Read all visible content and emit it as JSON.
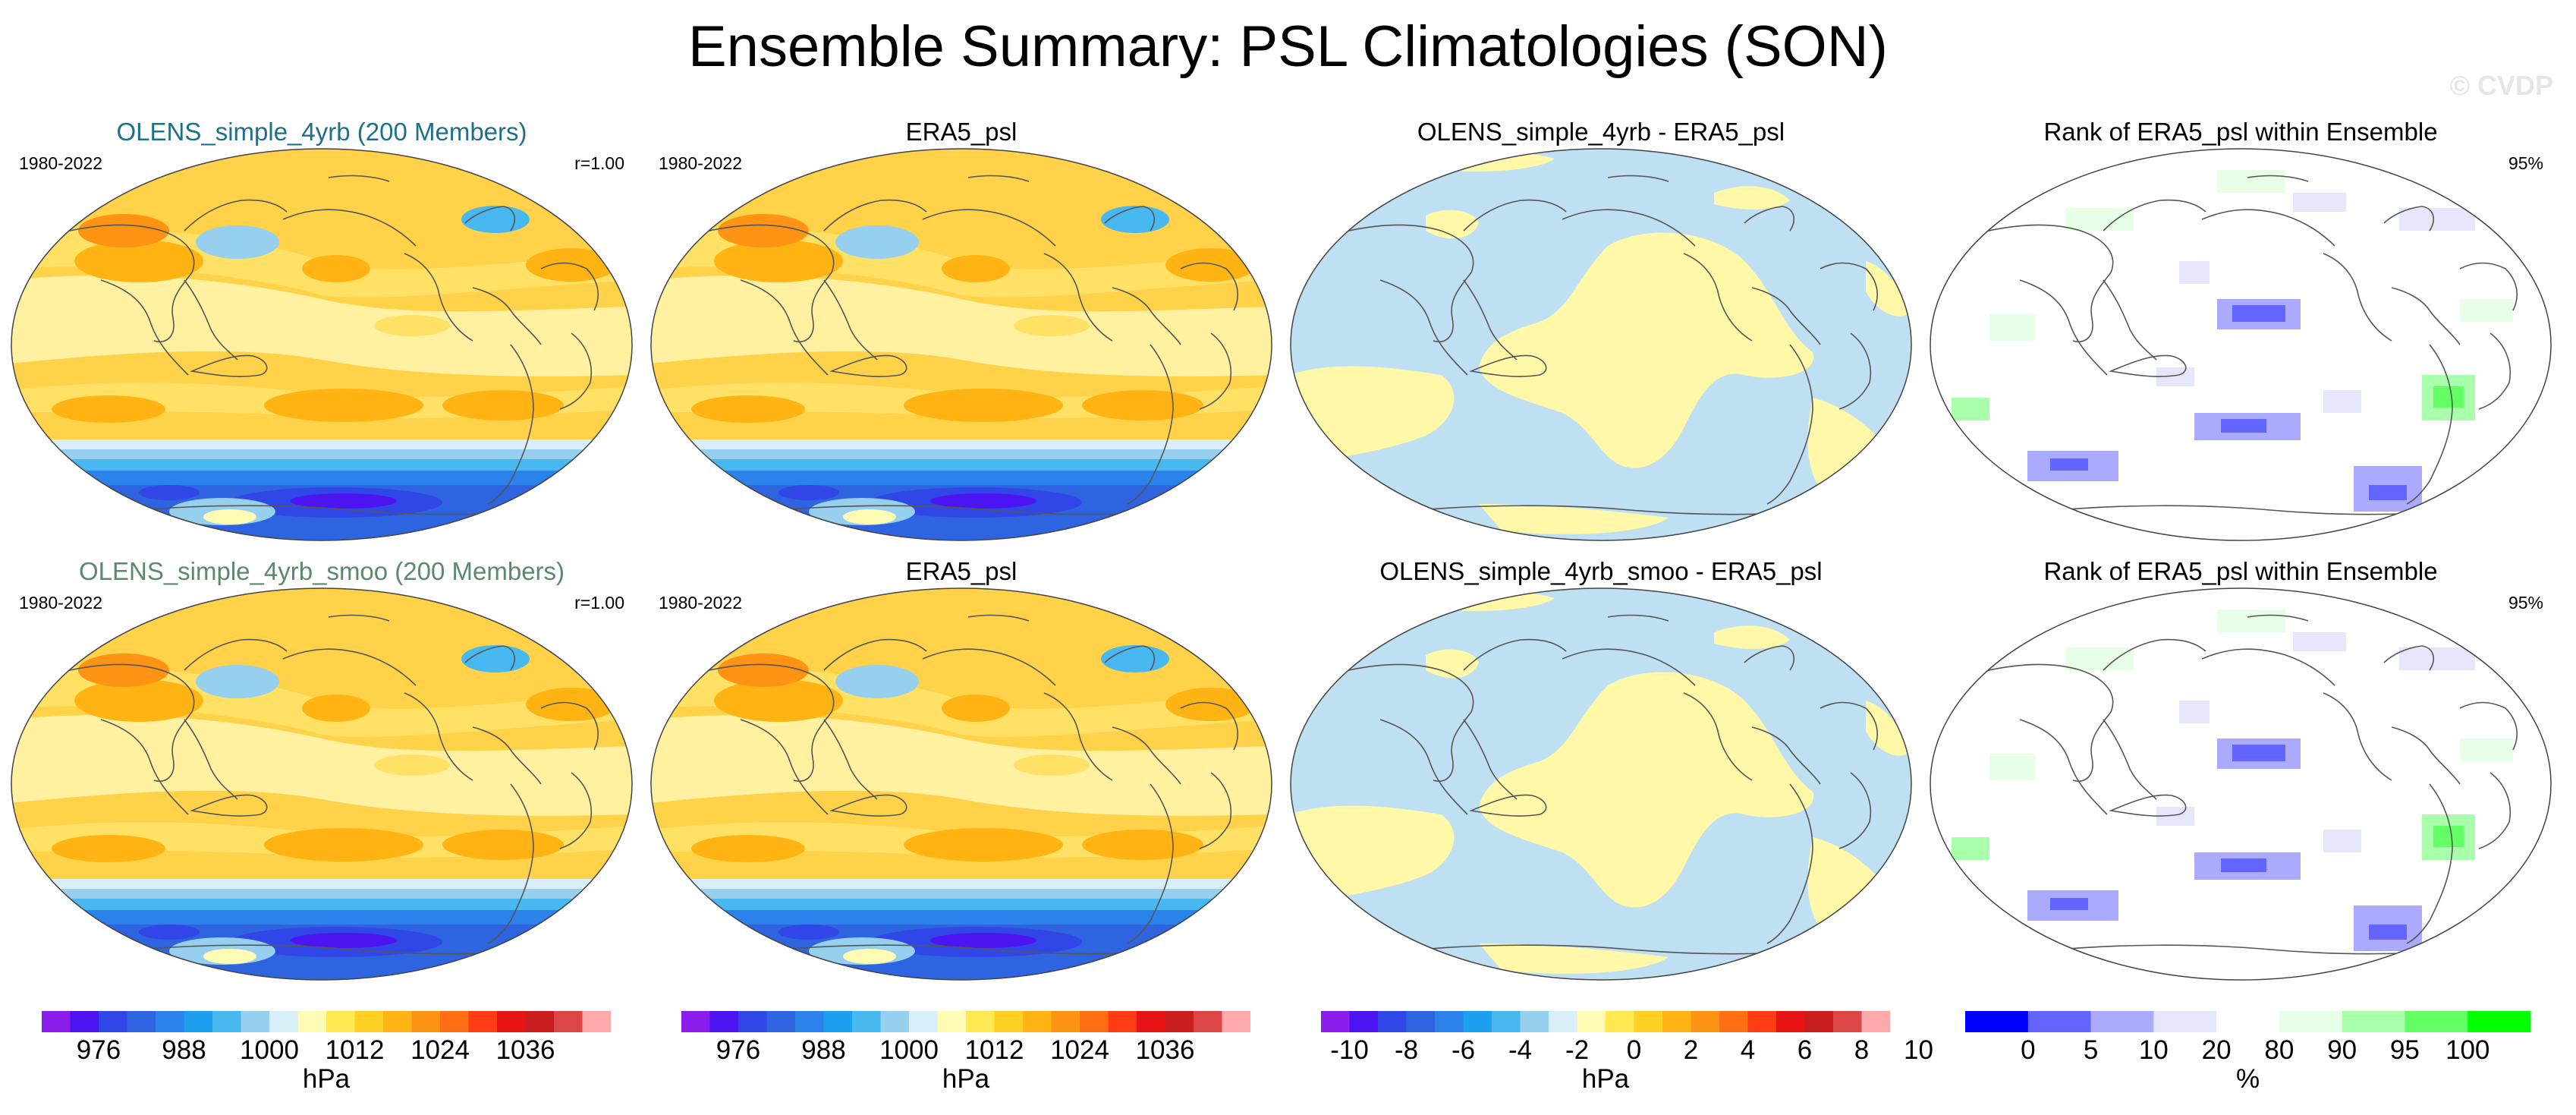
{
  "title": "Ensemble Summary: PSL Climatologies (SON)",
  "watermark": "© CVDP",
  "colors": {
    "title_row1": "#1f6f8b",
    "title_row2": "#5a8a6a",
    "diff_neg": "#bfe0f2",
    "diff_pos": "#fff8a8"
  },
  "panels": [
    {
      "title": "OLENS_simple_4yrb (200 Members)",
      "left_text": "1980-2022",
      "right_text": "r=1.00",
      "kind": "psl"
    },
    {
      "title": "ERA5_psl",
      "left_text": "1980-2022",
      "right_text": "",
      "kind": "psl"
    },
    {
      "title": "OLENS_simple_4yrb - ERA5_psl",
      "left_text": "",
      "right_text": "",
      "kind": "diff"
    },
    {
      "title": "Rank of ERA5_psl within Ensemble",
      "left_text": "",
      "right_text": "95%",
      "kind": "rank"
    },
    {
      "title": "OLENS_simple_4yrb_smoo (200 Members)",
      "left_text": "1980-2022",
      "right_text": "r=1.00",
      "kind": "psl"
    },
    {
      "title": "ERA5_psl",
      "left_text": "1980-2022",
      "right_text": "",
      "kind": "psl"
    },
    {
      "title": "OLENS_simple_4yrb_smoo - ERA5_psl",
      "left_text": "",
      "right_text": "",
      "kind": "diff"
    },
    {
      "title": "Rank of ERA5_psl within Ensemble",
      "left_text": "",
      "right_text": "95%",
      "kind": "rank"
    }
  ],
  "colorbars": [
    {
      "unit": "hPa",
      "labels": [
        "976",
        "988",
        "1000",
        "1012",
        "1024",
        "1036"
      ],
      "colors": [
        "#8c1eed",
        "#4b14f0",
        "#3046e6",
        "#2e64e0",
        "#2a82ea",
        "#1ea0f0",
        "#48b8f0",
        "#96d0ee",
        "#d8eef8",
        "#fffab4",
        "#ffe850",
        "#ffd024",
        "#ffb414",
        "#ff9414",
        "#ff6e14",
        "#ff3c14",
        "#e61414",
        "#c81e1e",
        "#dc4646",
        "#ffaaaa"
      ]
    },
    {
      "unit": "hPa",
      "labels": [
        "976",
        "988",
        "1000",
        "1012",
        "1024",
        "1036"
      ],
      "colors": [
        "#8c1eed",
        "#4b14f0",
        "#3046e6",
        "#2e64e0",
        "#2a82ea",
        "#1ea0f0",
        "#48b8f0",
        "#96d0ee",
        "#d8eef8",
        "#fffab4",
        "#ffe850",
        "#ffd024",
        "#ffb414",
        "#ff9414",
        "#ff6e14",
        "#ff3c14",
        "#e61414",
        "#c81e1e",
        "#dc4646",
        "#ffaaaa"
      ]
    },
    {
      "unit": "hPa",
      "labels": [
        "-10",
        "-8",
        "-6",
        "-4",
        "-2",
        "0",
        "2",
        "4",
        "6",
        "8",
        "10"
      ],
      "colors": [
        "#8c1eed",
        "#4b14f0",
        "#3046e6",
        "#2e64e0",
        "#2a82ea",
        "#1ea0f0",
        "#48b8f0",
        "#96d0ee",
        "#d8eef8",
        "#fffab4",
        "#ffe850",
        "#ffd024",
        "#ffb414",
        "#ff9414",
        "#ff6e14",
        "#ff3c14",
        "#e61414",
        "#c81e1e",
        "#dc4646",
        "#ffaaaa"
      ]
    },
    {
      "unit": "%",
      "labels": [
        "0",
        "5",
        "10",
        "20",
        "80",
        "90",
        "95",
        "100"
      ],
      "colors": [
        "#0000ff",
        "#6464ff",
        "#aaaaff",
        "#e6e6fa",
        "#ffffff",
        "#e6ffe6",
        "#aaffaa",
        "#64ff64",
        "#00ff00"
      ]
    }
  ]
}
